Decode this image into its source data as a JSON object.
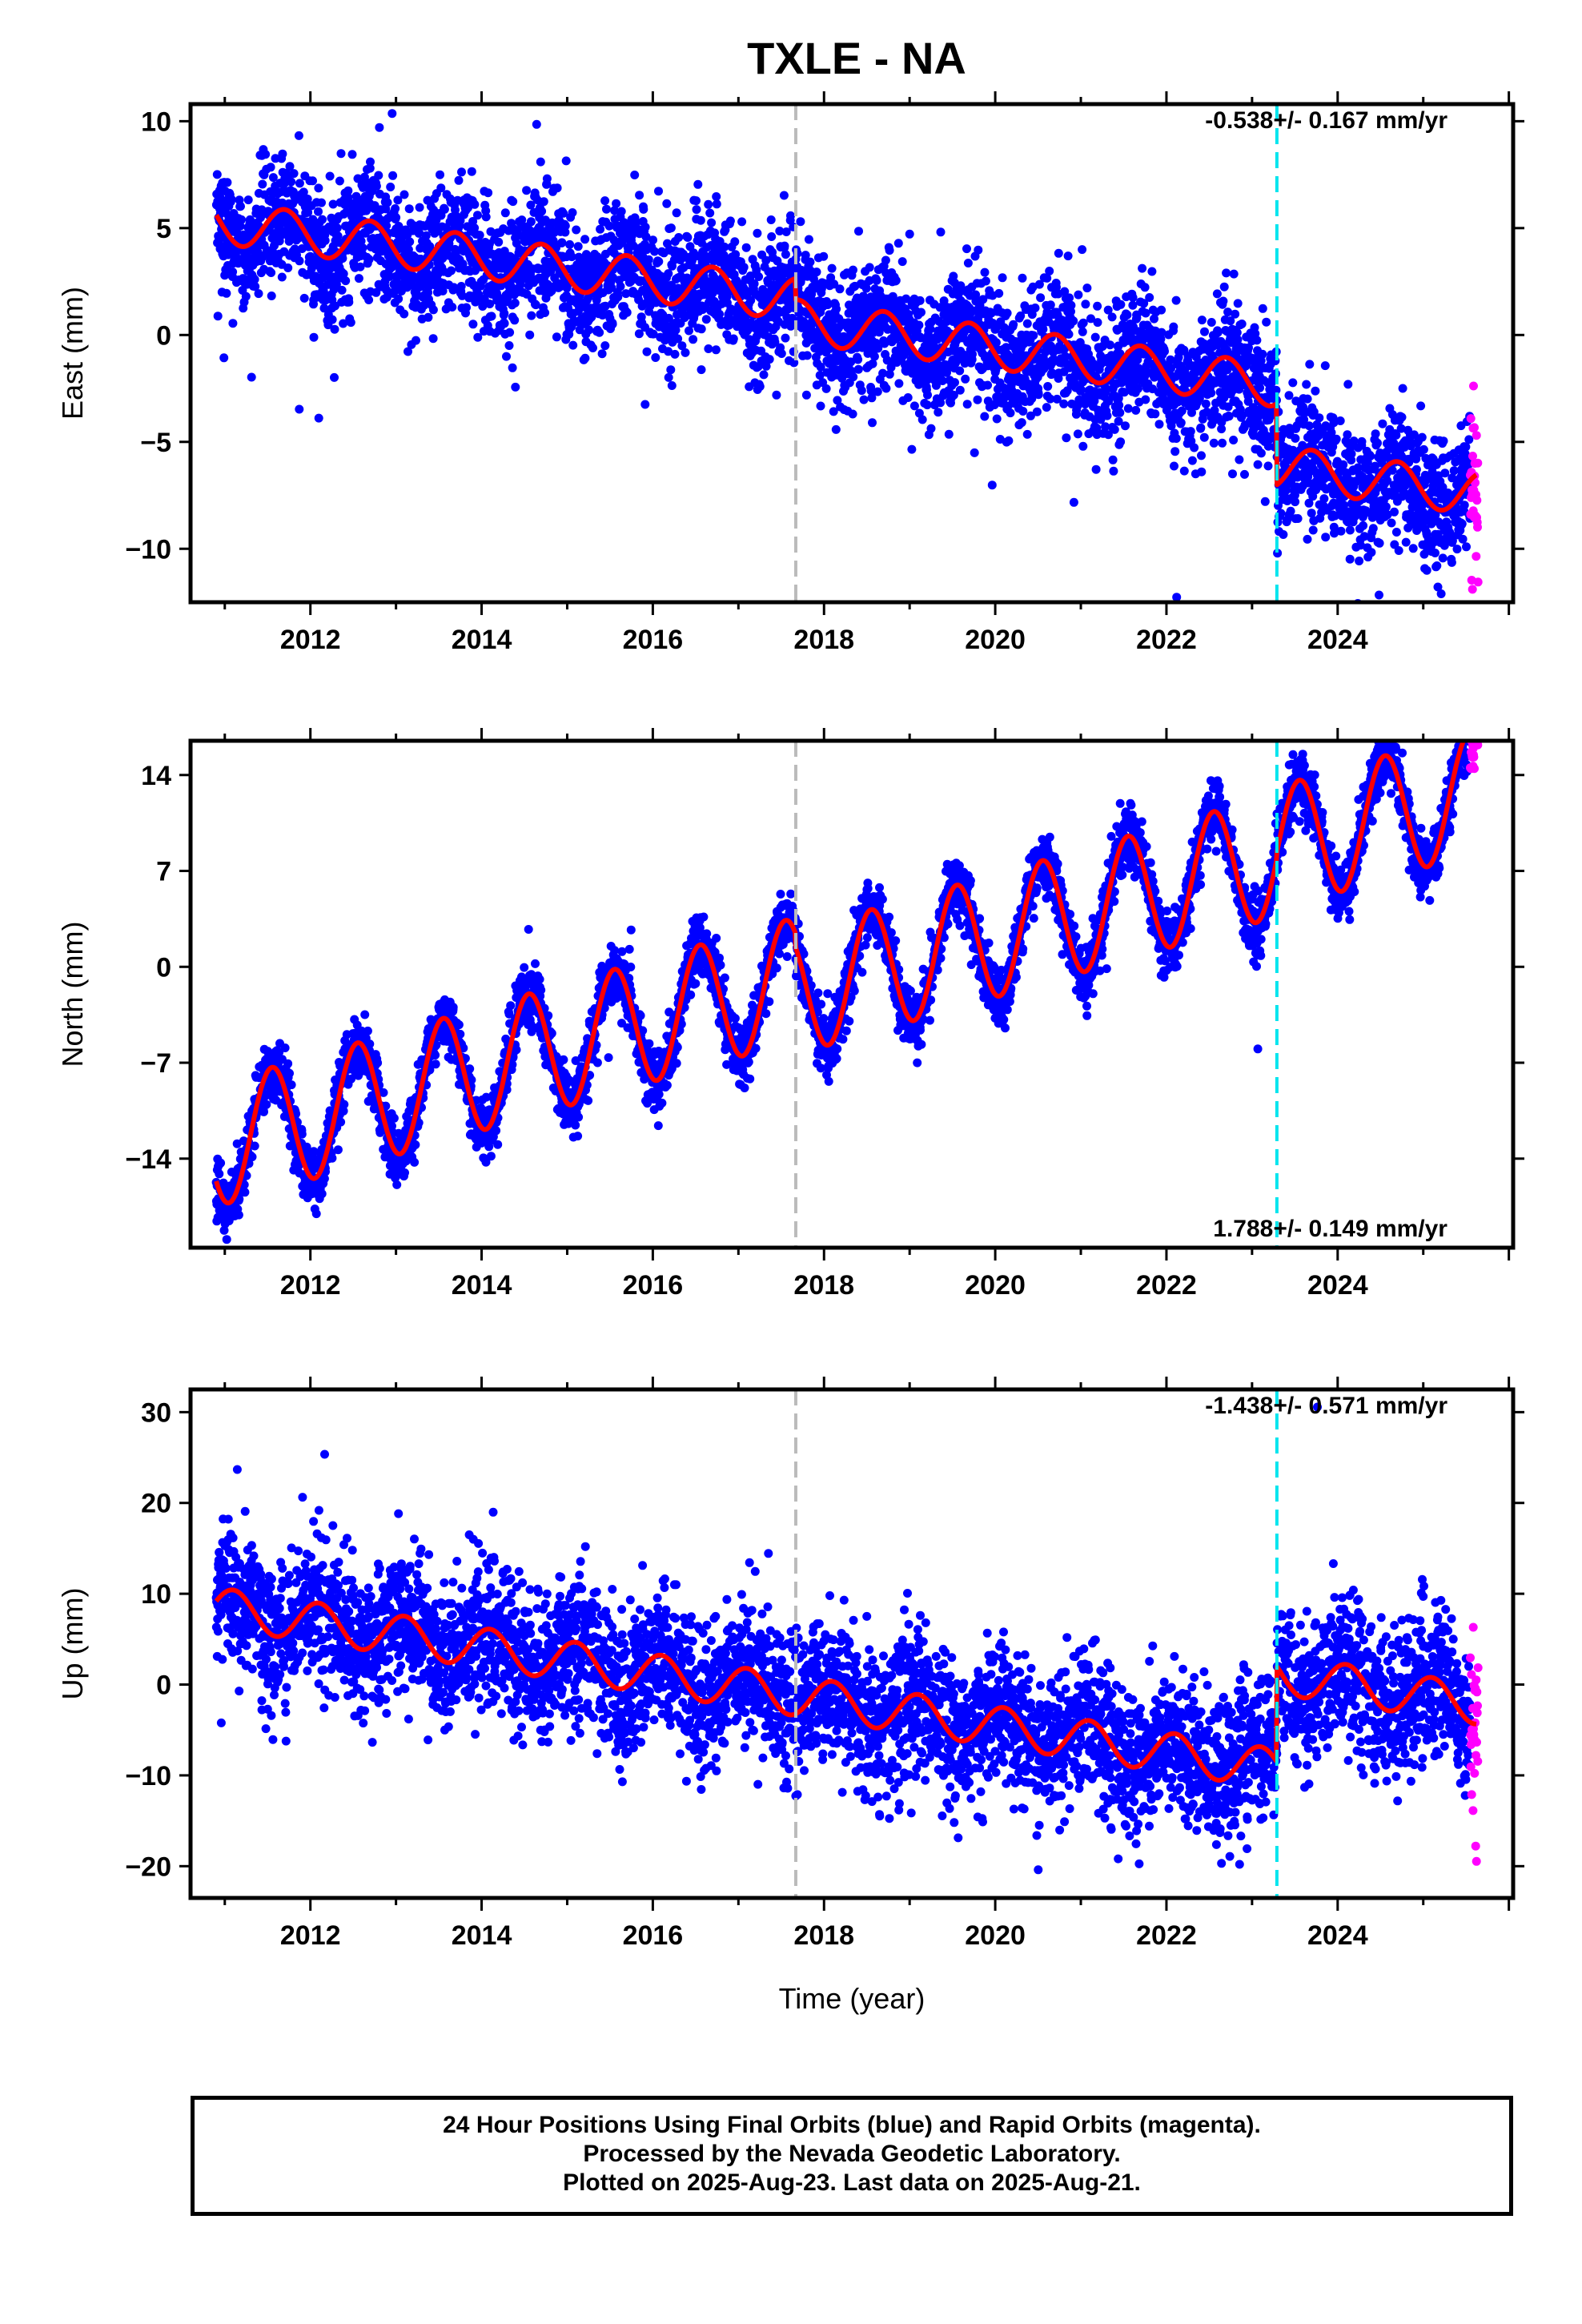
{
  "title": "TXLE - NA",
  "colors": {
    "final": "#0000ff",
    "rapid": "#ff00ff",
    "model": "#ff0000",
    "gray_line": "#bbbbbb",
    "cyan_line": "#00e5ee"
  },
  "x_axis_label": "Time (year)",
  "footer": [
    "24 Hour Positions Using Final Orbits (blue) and Rapid Orbits (magenta).",
    "Processed by the Nevada Geodetic Laboratory.",
    "Plotted on 2025-Aug-23. Last data on 2025-Aug-21."
  ],
  "chart_data": [
    {
      "type": "scatter",
      "component": "East",
      "ylabel": "East (mm)",
      "xlim": [
        2010.6,
        2026.05
      ],
      "ylim": [
        -12.5,
        10.8
      ],
      "xticks": [
        "2012",
        "2014",
        "2016",
        "2018",
        "2020",
        "2022",
        "2024"
      ],
      "yticks": [
        "10",
        "5",
        "0",
        "−5",
        "−10"
      ],
      "ytick_values": [
        10,
        5,
        0,
        -5,
        -10
      ],
      "rate_label": "-0.538+/- 0.167 mm/yr",
      "rate_position": "top-right",
      "vertical_lines": [
        {
          "x": 2017.67,
          "color": "gray"
        },
        {
          "x": 2023.29,
          "color": "cyan"
        }
      ],
      "model": {
        "start": 2010.9,
        "end": 2025.62,
        "offset": 5.3,
        "slope": -0.538,
        "annual_amp": 1.0,
        "annual_phase": 0.7,
        "steps": [
          {
            "x": 2017.67,
            "dy": -1.0
          },
          {
            "x": 2023.29,
            "dy": -3.8
          }
        ]
      },
      "scatter_noise": 1.5,
      "series": [
        {
          "name": "Final Orbits",
          "x_range": [
            2010.9,
            2025.55
          ]
        },
        {
          "name": "Rapid Orbits",
          "x_range": [
            2025.55,
            2025.64
          ]
        }
      ]
    },
    {
      "type": "scatter",
      "component": "North",
      "ylabel": "North (mm)",
      "xlim": [
        2010.6,
        2026.05
      ],
      "ylim": [
        -20.5,
        16.5
      ],
      "xticks": [
        "2012",
        "2014",
        "2016",
        "2018",
        "2020",
        "2022",
        "2024"
      ],
      "yticks": [
        "14",
        "7",
        "0",
        "−7",
        "−14"
      ],
      "ytick_values": [
        14,
        7,
        0,
        -7,
        -14
      ],
      "rate_label": "1.788+/- 0.149 mm/yr",
      "rate_position": "bottom-right",
      "vertical_lines": [
        {
          "x": 2017.67,
          "color": "gray"
        },
        {
          "x": 2023.29,
          "color": "cyan"
        }
      ],
      "model": {
        "start": 2010.9,
        "end": 2025.62,
        "offset": -13.0,
        "slope": 1.788,
        "annual_amp": 4.5,
        "annual_phase": 0.55,
        "steps": [
          {
            "x": 2017.67,
            "dy": -1.0
          },
          {
            "x": 2023.29,
            "dy": 0.5
          }
        ]
      },
      "scatter_noise": 1.1,
      "series": [
        {
          "name": "Final Orbits",
          "x_range": [
            2010.9,
            2025.55
          ]
        },
        {
          "name": "Rapid Orbits",
          "x_range": [
            2025.55,
            2025.64
          ]
        }
      ]
    },
    {
      "type": "scatter",
      "component": "Up",
      "ylabel": "Up (mm)",
      "xlim": [
        2010.6,
        2026.05
      ],
      "ylim": [
        -23.5,
        32.5
      ],
      "xticks": [
        "2012",
        "2014",
        "2016",
        "2018",
        "2020",
        "2022",
        "2024"
      ],
      "yticks": [
        "30",
        "20",
        "10",
        "0",
        "−10",
        "−20"
      ],
      "ytick_values": [
        30,
        20,
        10,
        0,
        -10,
        -20
      ],
      "rate_label": "-1.438+/- 0.571 mm/yr",
      "rate_position": "top-right",
      "vertical_lines": [
        {
          "x": 2017.67,
          "color": "gray"
        },
        {
          "x": 2023.29,
          "color": "cyan"
        }
      ],
      "model": {
        "start": 2010.9,
        "end": 2025.62,
        "offset": 8.5,
        "slope": -1.438,
        "annual_amp": 2.2,
        "annual_phase": 0.1,
        "steps": [
          {
            "x": 2023.29,
            "dy": 10.5
          }
        ]
      },
      "scatter_noise": 4.0,
      "series": [
        {
          "name": "Final Orbits",
          "x_range": [
            2010.9,
            2025.55
          ]
        },
        {
          "name": "Rapid Orbits",
          "x_range": [
            2025.55,
            2025.64
          ]
        }
      ]
    }
  ]
}
